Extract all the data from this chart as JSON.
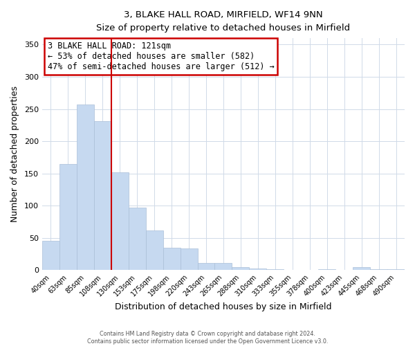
{
  "title1": "3, BLAKE HALL ROAD, MIRFIELD, WF14 9NN",
  "title2": "Size of property relative to detached houses in Mirfield",
  "xlabel": "Distribution of detached houses by size in Mirfield",
  "ylabel": "Number of detached properties",
  "categories": [
    "40sqm",
    "63sqm",
    "85sqm",
    "108sqm",
    "130sqm",
    "153sqm",
    "175sqm",
    "198sqm",
    "220sqm",
    "243sqm",
    "265sqm",
    "288sqm",
    "310sqm",
    "333sqm",
    "355sqm",
    "378sqm",
    "400sqm",
    "423sqm",
    "445sqm",
    "468sqm",
    "490sqm"
  ],
  "values": [
    45,
    165,
    257,
    231,
    152,
    97,
    62,
    35,
    34,
    11,
    11,
    5,
    2,
    1,
    0,
    0,
    1,
    0,
    5,
    1,
    1
  ],
  "bar_color": "#c6d9f0",
  "bar_edge_color": "#aabfd8",
  "highlight_line_color": "#cc0000",
  "annotation_title": "3 BLAKE HALL ROAD: 121sqm",
  "annotation_line1": "← 53% of detached houses are smaller (582)",
  "annotation_line2": "47% of semi-detached houses are larger (512) →",
  "annotation_box_color": "#cc0000",
  "ylim": [
    0,
    360
  ],
  "yticks": [
    0,
    50,
    100,
    150,
    200,
    250,
    300,
    350
  ],
  "footer1": "Contains HM Land Registry data © Crown copyright and database right 2024.",
  "footer2": "Contains public sector information licensed under the Open Government Licence v3.0.",
  "background_color": "#ffffff",
  "grid_color": "#d0dae8"
}
